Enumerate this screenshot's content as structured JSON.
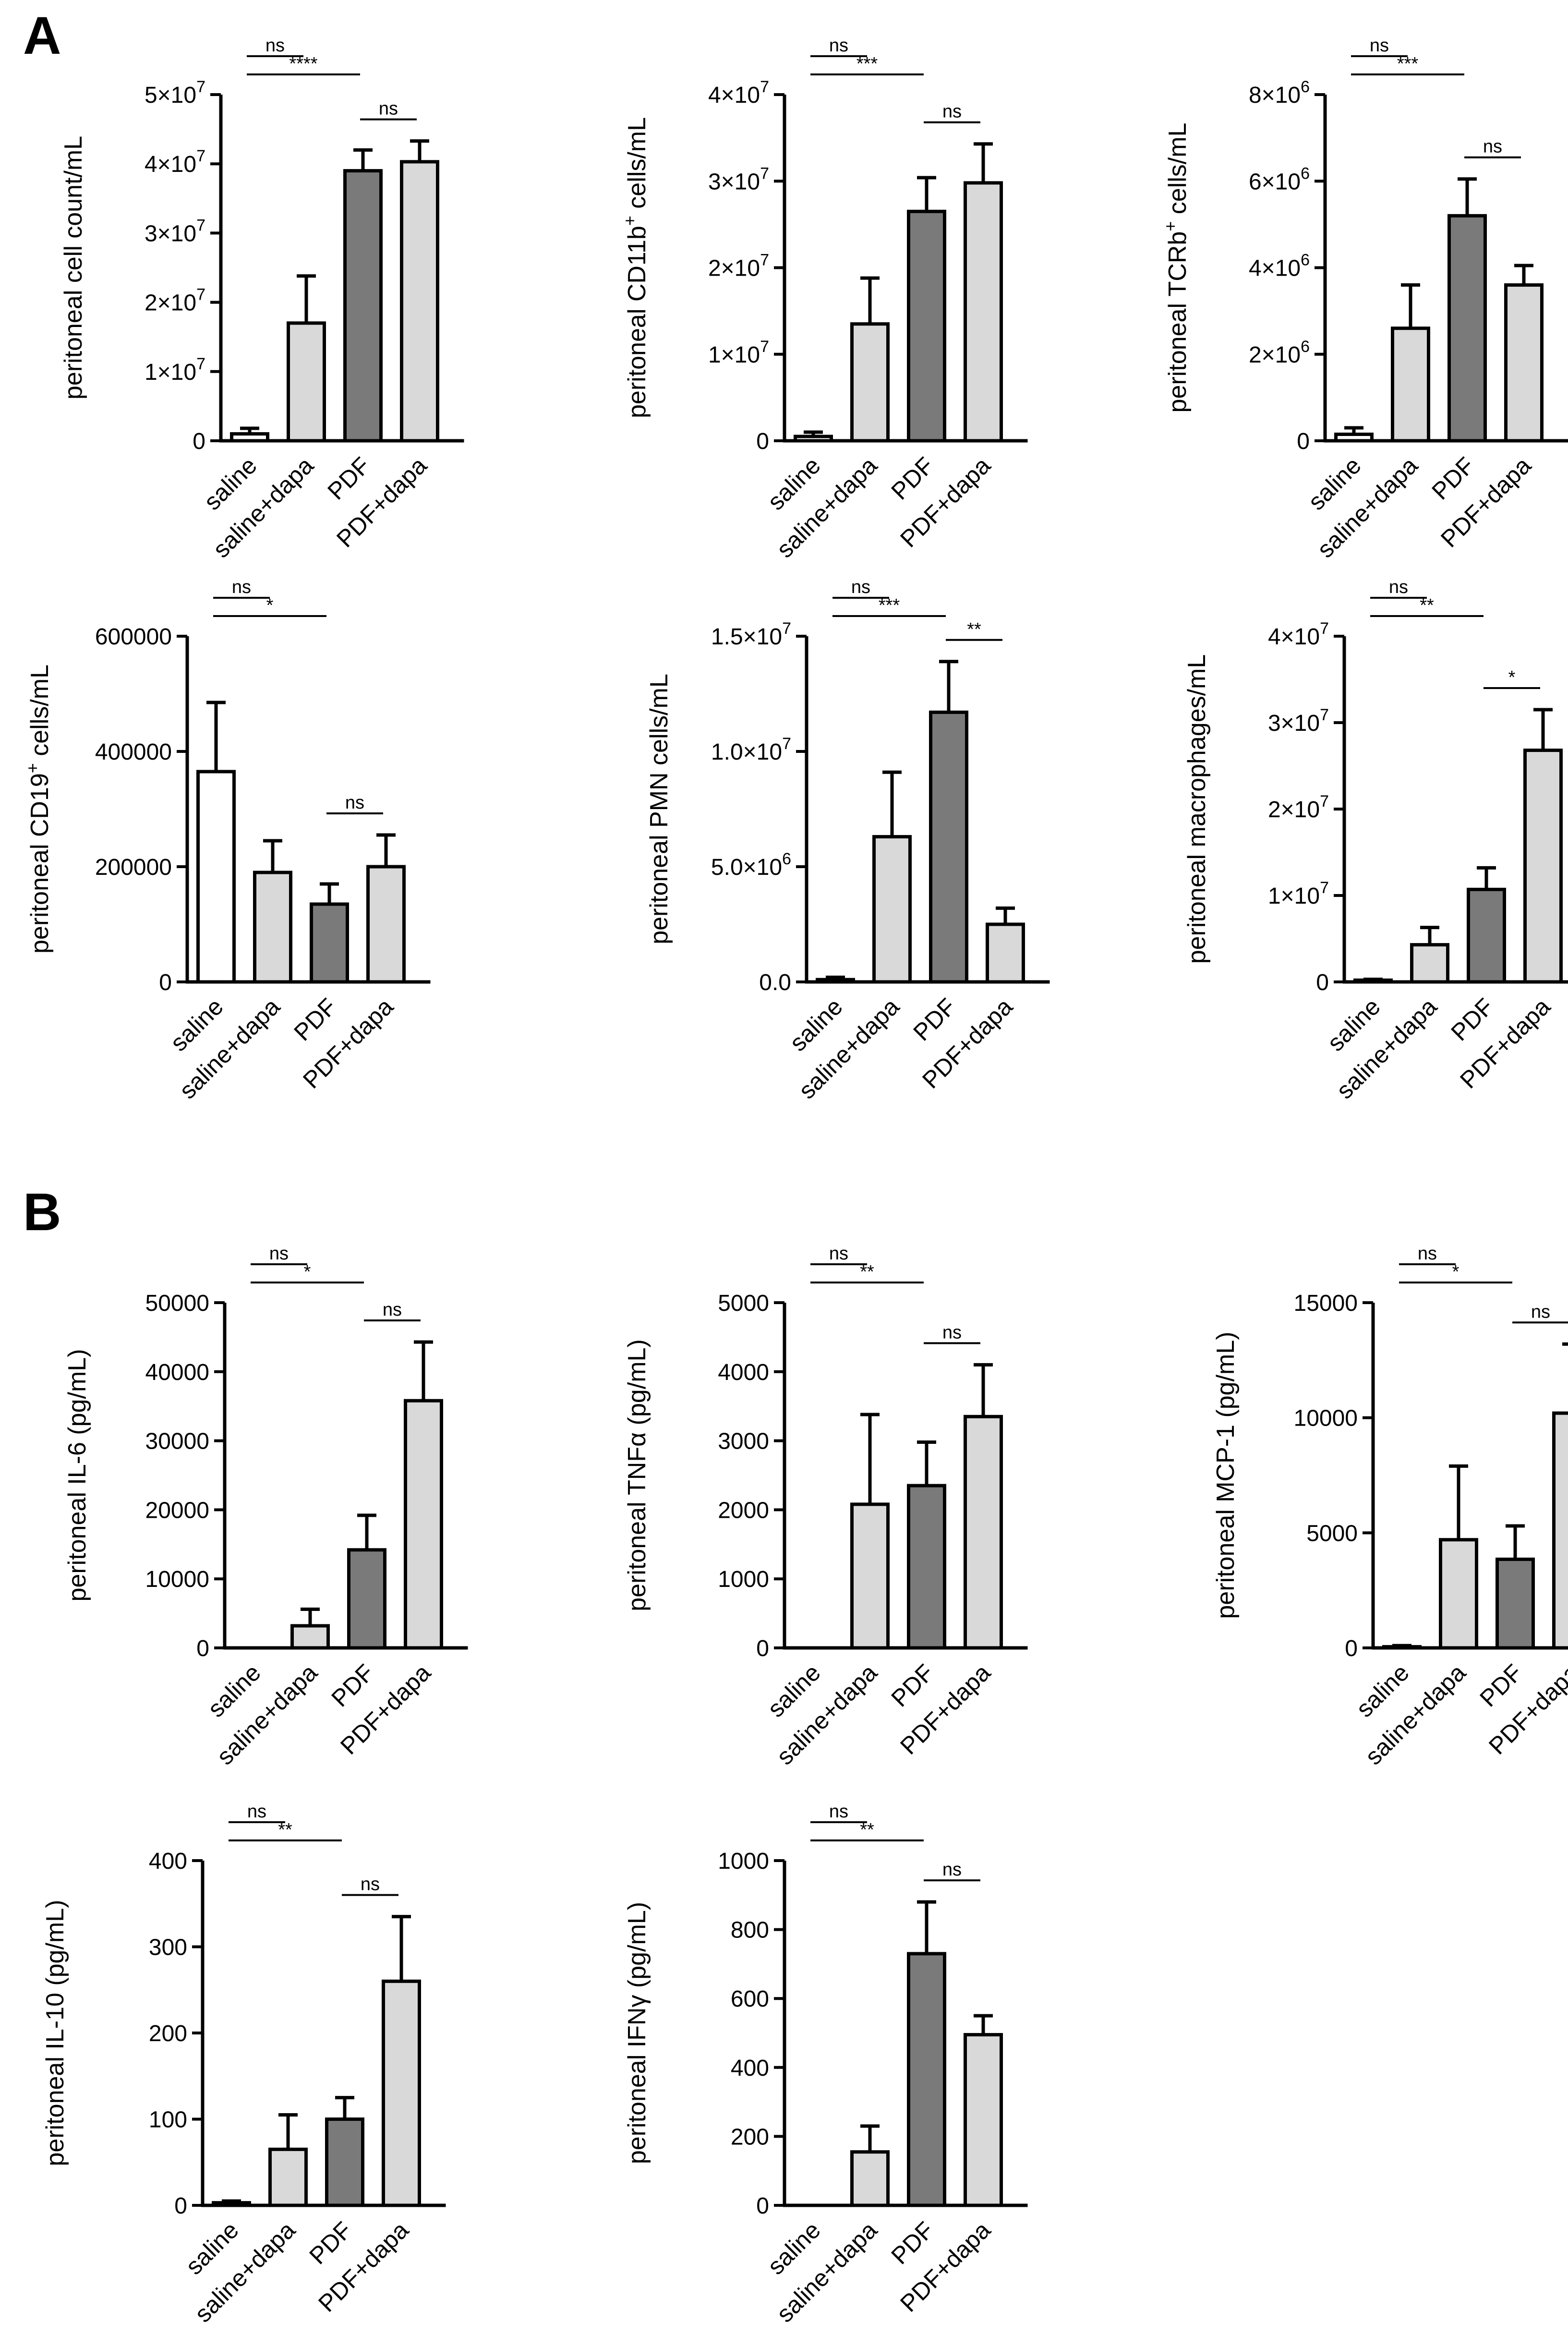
{
  "colors": {
    "axis": "#000000",
    "saline": "#ffffff",
    "saline_dapa": "#d9d9d9",
    "PDF": "#7a7a7a",
    "PDF_dapa": "#d9d9d9"
  },
  "panel_labels": [
    "A",
    "B"
  ],
  "chart_data": [
    {
      "panel": "A",
      "type": "bar",
      "ylabel": "peritoneal cell count/mL",
      "categories": [
        "saline",
        "saline+dapa",
        "PDF",
        "PDF+dapa"
      ],
      "values": [
        1000000,
        17000000,
        39000000,
        40300000
      ],
      "errors": [
        800000,
        6800000,
        3000000,
        3000000
      ],
      "ylim": [
        0,
        50000000
      ],
      "ticks": [
        0,
        10000000,
        20000000,
        30000000,
        40000000,
        50000000
      ],
      "tick_labels": [
        {
          "text": "0"
        },
        {
          "text": "1×10",
          "sup": "7"
        },
        {
          "text": "2×10",
          "sup": "7"
        },
        {
          "text": "3×10",
          "sup": "7"
        },
        {
          "text": "4×10",
          "sup": "7"
        },
        {
          "text": "5×10",
          "sup": "7"
        }
      ],
      "significance": [
        {
          "from": 0,
          "to": 1,
          "label": "ns"
        },
        {
          "from": 0,
          "to": 2,
          "label": "****"
        },
        {
          "from": 2,
          "to": 3,
          "label": "ns"
        }
      ]
    },
    {
      "panel": "A",
      "type": "bar",
      "ylabel": "peritoneal CD11b+ cells/mL",
      "ylabel_parts": {
        "pre": "peritoneal CD11b",
        "sup": "+",
        "post": " cells/mL"
      },
      "categories": [
        "saline",
        "saline+dapa",
        "PDF",
        "PDF+dapa"
      ],
      "values": [
        500000,
        13500000,
        26500000,
        29800000
      ],
      "errors": [
        500000,
        5300000,
        3900000,
        4500000
      ],
      "ylim": [
        0,
        40000000
      ],
      "ticks": [
        0,
        10000000,
        20000000,
        30000000,
        40000000
      ],
      "tick_labels": [
        {
          "text": "0"
        },
        {
          "text": "1×10",
          "sup": "7"
        },
        {
          "text": "2×10",
          "sup": "7"
        },
        {
          "text": "3×10",
          "sup": "7"
        },
        {
          "text": "4×10",
          "sup": "7"
        }
      ],
      "significance": [
        {
          "from": 0,
          "to": 1,
          "label": "ns"
        },
        {
          "from": 0,
          "to": 2,
          "label": "***"
        },
        {
          "from": 2,
          "to": 3,
          "label": "ns"
        }
      ]
    },
    {
      "panel": "A",
      "type": "bar",
      "ylabel": "peritoneal TCRb+ cells/mL",
      "ylabel_parts": {
        "pre": "peritoneal TCRb",
        "sup": "+",
        "post": " cells/mL"
      },
      "categories": [
        "saline",
        "saline+dapa",
        "PDF",
        "PDF+dapa"
      ],
      "values": [
        150000,
        2600000,
        5200000,
        3600000
      ],
      "errors": [
        150000,
        1000000,
        850000,
        450000
      ],
      "ylim": [
        0,
        8000000
      ],
      "ticks": [
        0,
        2000000,
        4000000,
        6000000,
        8000000
      ],
      "tick_labels": [
        {
          "text": "0"
        },
        {
          "text": "2×10",
          "sup": "6"
        },
        {
          "text": "4×10",
          "sup": "6"
        },
        {
          "text": "6×10",
          "sup": "6"
        },
        {
          "text": "8×10",
          "sup": "6"
        }
      ],
      "significance": [
        {
          "from": 0,
          "to": 1,
          "label": "ns"
        },
        {
          "from": 0,
          "to": 2,
          "label": "***"
        },
        {
          "from": 2,
          "to": 3,
          "label": "ns"
        }
      ]
    },
    {
      "panel": "A",
      "type": "bar",
      "ylabel": "peritoneal CD19+ cells/mL",
      "ylabel_parts": {
        "pre": "peritoneal CD19",
        "sup": "+",
        "post": " cells/mL"
      },
      "categories": [
        "saline",
        "saline+dapa",
        "PDF",
        "PDF+dapa"
      ],
      "values": [
        365000,
        190000,
        135000,
        200000
      ],
      "errors": [
        120000,
        55000,
        35000,
        55000
      ],
      "ylim": [
        0,
        600000
      ],
      "ticks": [
        0,
        200000,
        400000,
        600000
      ],
      "tick_labels": [
        {
          "text": "0"
        },
        {
          "text": "200000"
        },
        {
          "text": "400000"
        },
        {
          "text": "600000"
        }
      ],
      "significance": [
        {
          "from": 0,
          "to": 1,
          "label": "ns"
        },
        {
          "from": 0,
          "to": 2,
          "label": "*"
        },
        {
          "from": 2,
          "to": 3,
          "label": "ns"
        }
      ]
    },
    {
      "panel": "A",
      "type": "bar",
      "ylabel": "peritoneal PMN cells/mL",
      "categories": [
        "saline",
        "saline+dapa",
        "PDF",
        "PDF+dapa"
      ],
      "values": [
        100000,
        6300000,
        11700000,
        2500000
      ],
      "errors": [
        100000,
        2800000,
        2200000,
        700000
      ],
      "ylim": [
        0,
        15000000
      ],
      "ticks": [
        0,
        5000000,
        10000000,
        15000000
      ],
      "tick_labels": [
        {
          "text": "0.0"
        },
        {
          "text": "5.0×10",
          "sup": "6"
        },
        {
          "text": "1.0×10",
          "sup": "7"
        },
        {
          "text": "1.5×10",
          "sup": "7"
        }
      ],
      "significance": [
        {
          "from": 0,
          "to": 1,
          "label": "ns"
        },
        {
          "from": 0,
          "to": 2,
          "label": "***"
        },
        {
          "from": 2,
          "to": 3,
          "label": "**"
        }
      ]
    },
    {
      "panel": "A",
      "type": "bar",
      "ylabel": "peritoneal macrophages/mL",
      "categories": [
        "saline",
        "saline+dapa",
        "PDF",
        "PDF+dapa"
      ],
      "values": [
        200000,
        4300000,
        10700000,
        26800000
      ],
      "errors": [
        100000,
        2000000,
        2500000,
        4700000
      ],
      "ylim": [
        0,
        40000000
      ],
      "ticks": [
        0,
        10000000,
        20000000,
        30000000,
        40000000
      ],
      "tick_labels": [
        {
          "text": "0"
        },
        {
          "text": "1×10",
          "sup": "7"
        },
        {
          "text": "2×10",
          "sup": "7"
        },
        {
          "text": "3×10",
          "sup": "7"
        },
        {
          "text": "4×10",
          "sup": "7"
        }
      ],
      "significance": [
        {
          "from": 0,
          "to": 1,
          "label": "ns"
        },
        {
          "from": 0,
          "to": 2,
          "label": "**"
        },
        {
          "from": 2,
          "to": 3,
          "label": "*"
        }
      ]
    },
    {
      "panel": "B",
      "type": "bar",
      "ylabel": "peritoneal IL-6 (pg/mL)",
      "categories": [
        "saline",
        "saline+dapa",
        "PDF",
        "PDF+dapa"
      ],
      "values": [
        0,
        3200,
        14200,
        35800
      ],
      "errors": [
        0,
        2400,
        5000,
        8500
      ],
      "ylim": [
        0,
        50000
      ],
      "ticks": [
        0,
        10000,
        20000,
        30000,
        40000,
        50000
      ],
      "tick_labels": [
        {
          "text": "0"
        },
        {
          "text": "10000"
        },
        {
          "text": "20000"
        },
        {
          "text": "30000"
        },
        {
          "text": "40000"
        },
        {
          "text": "50000"
        }
      ],
      "significance": [
        {
          "from": 0,
          "to": 1,
          "label": "ns"
        },
        {
          "from": 0,
          "to": 2,
          "label": "*"
        },
        {
          "from": 2,
          "to": 3,
          "label": "ns"
        }
      ]
    },
    {
      "panel": "B",
      "type": "bar",
      "ylabel": "peritoneal TNFα (pg/mL)",
      "categories": [
        "saline",
        "saline+dapa",
        "PDF",
        "PDF+dapa"
      ],
      "values": [
        0,
        2080,
        2350,
        3350
      ],
      "errors": [
        0,
        1300,
        630,
        750
      ],
      "ylim": [
        0,
        5000
      ],
      "ticks": [
        0,
        1000,
        2000,
        3000,
        4000,
        5000
      ],
      "tick_labels": [
        {
          "text": "0"
        },
        {
          "text": "1000"
        },
        {
          "text": "2000"
        },
        {
          "text": "3000"
        },
        {
          "text": "4000"
        },
        {
          "text": "5000"
        }
      ],
      "significance": [
        {
          "from": 0,
          "to": 1,
          "label": "ns"
        },
        {
          "from": 0,
          "to": 2,
          "label": "**"
        },
        {
          "from": 2,
          "to": 3,
          "label": "ns"
        }
      ]
    },
    {
      "panel": "B",
      "type": "bar",
      "ylabel": "peritoneal MCP-1 (pg/mL)",
      "categories": [
        "saline",
        "saline+dapa",
        "PDF",
        "PDF+dapa"
      ],
      "values": [
        50,
        4700,
        3850,
        10200
      ],
      "errors": [
        50,
        3200,
        1450,
        3000
      ],
      "ylim": [
        0,
        15000
      ],
      "ticks": [
        0,
        5000,
        10000,
        15000
      ],
      "tick_labels": [
        {
          "text": "0"
        },
        {
          "text": "5000"
        },
        {
          "text": "10000"
        },
        {
          "text": "15000"
        }
      ],
      "significance": [
        {
          "from": 0,
          "to": 1,
          "label": "ns"
        },
        {
          "from": 0,
          "to": 2,
          "label": "*"
        },
        {
          "from": 2,
          "to": 3,
          "label": "ns"
        }
      ]
    },
    {
      "panel": "B",
      "type": "bar",
      "ylabel": "peritoneal IL-10 (pg/mL)",
      "categories": [
        "saline",
        "saline+dapa",
        "PDF",
        "PDF+dapa"
      ],
      "values": [
        3,
        65,
        100,
        260
      ],
      "errors": [
        2,
        40,
        25,
        75
      ],
      "ylim": [
        0,
        400
      ],
      "ticks": [
        0,
        100,
        200,
        300,
        400
      ],
      "tick_labels": [
        {
          "text": "0"
        },
        {
          "text": "100"
        },
        {
          "text": "200"
        },
        {
          "text": "300"
        },
        {
          "text": "400"
        }
      ],
      "significance": [
        {
          "from": 0,
          "to": 1,
          "label": "ns"
        },
        {
          "from": 0,
          "to": 2,
          "label": "**"
        },
        {
          "from": 2,
          "to": 3,
          "label": "ns"
        }
      ]
    },
    {
      "panel": "B",
      "type": "bar",
      "ylabel": "peritoneal IFNγ (pg/mL)",
      "categories": [
        "saline",
        "saline+dapa",
        "PDF",
        "PDF+dapa"
      ],
      "values": [
        0,
        155,
        730,
        495
      ],
      "errors": [
        0,
        75,
        150,
        55
      ],
      "ylim": [
        0,
        1000
      ],
      "ticks": [
        0,
        200,
        400,
        600,
        800,
        1000
      ],
      "tick_labels": [
        {
          "text": "0"
        },
        {
          "text": "200"
        },
        {
          "text": "400"
        },
        {
          "text": "600"
        },
        {
          "text": "800"
        },
        {
          "text": "1000"
        }
      ],
      "significance": [
        {
          "from": 0,
          "to": 1,
          "label": "ns"
        },
        {
          "from": 0,
          "to": 2,
          "label": "**"
        },
        {
          "from": 2,
          "to": 3,
          "label": "ns"
        }
      ]
    }
  ]
}
